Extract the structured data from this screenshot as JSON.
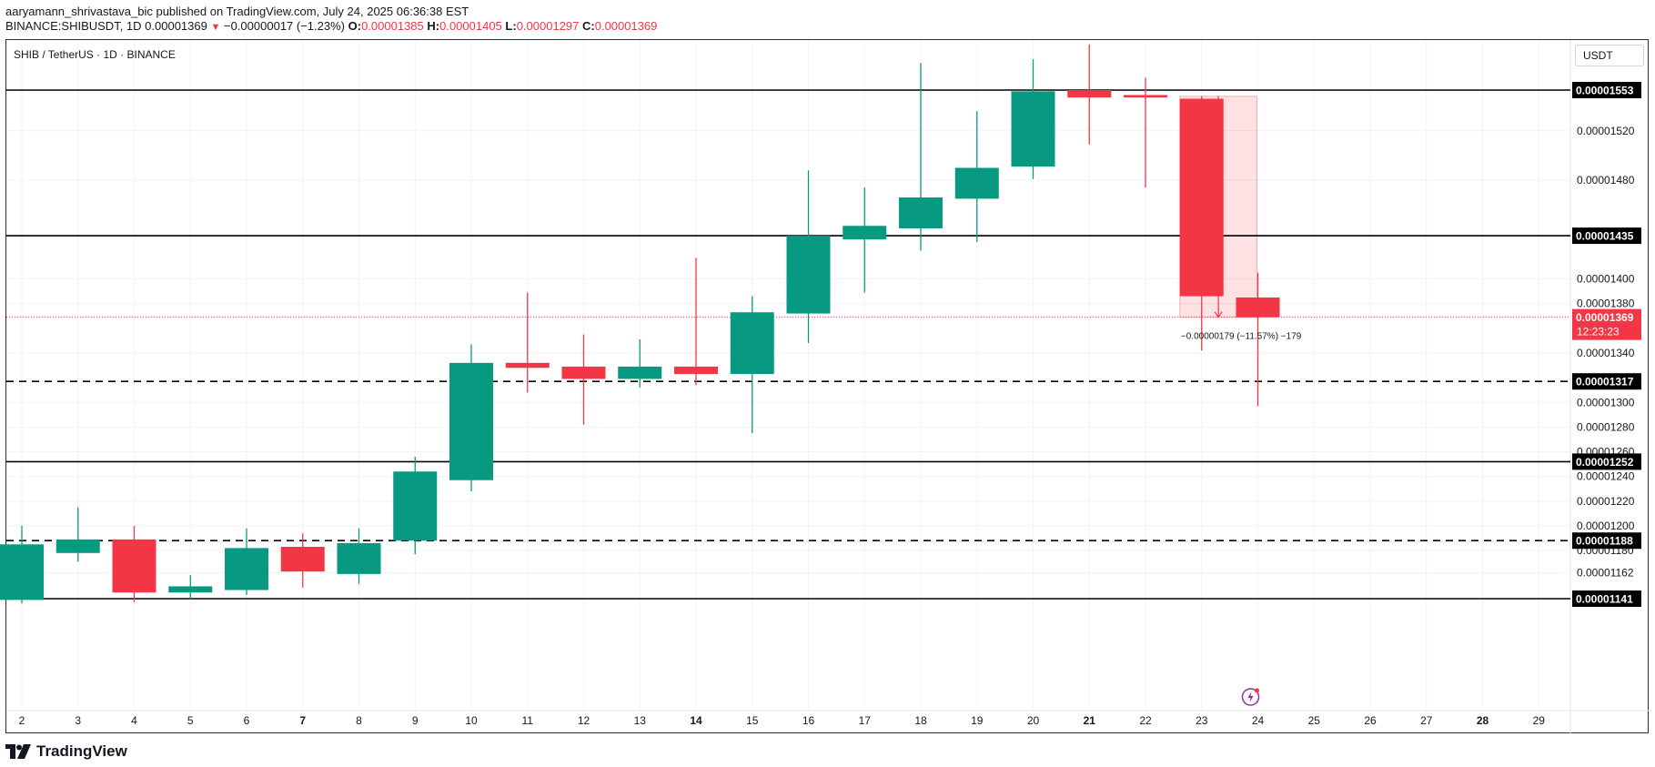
{
  "header": {
    "author_line": "aaryamann_shrivastava_bic published on TradingView.com, July 24, 2025 06:36:38 EST",
    "symbol_line": "BINANCE:SHIBUSDT, 1D",
    "last": "0.00001369",
    "change": "−0.00000017 (−1.23%)",
    "o_label": "O:",
    "o": "0.00001385",
    "h_label": "H:",
    "h": "0.00001405",
    "l_label": "L:",
    "l": "0.00001297",
    "c_label": "C:",
    "c": "0.00001369"
  },
  "chart_title": "SHIB / TetherUS · 1D · BINANCE",
  "currency_unit": "USDT",
  "footer": {
    "brand": "TradingView"
  },
  "colors": {
    "up": "#089981",
    "down": "#f23645",
    "line": "#000000",
    "grid": "#f0f3fa"
  },
  "chart_data": {
    "type": "candlestick",
    "title": "SHIB / TetherUS · 1D · BINANCE",
    "ylim": [
      1.135e-05,
      1.58e-05
    ],
    "y_ticks": [
      "0.00001162",
      "0.00001180",
      "0.00001200",
      "0.00001220",
      "0.00001240",
      "0.00001260",
      "0.00001280",
      "0.00001300",
      "0.00001340",
      "0.00001380",
      "0.00001400",
      "0.00001480",
      "0.00001520"
    ],
    "x_ticks": [
      {
        "label": "2",
        "bold": false
      },
      {
        "label": "3",
        "bold": false
      },
      {
        "label": "4",
        "bold": false
      },
      {
        "label": "5",
        "bold": false
      },
      {
        "label": "6",
        "bold": false
      },
      {
        "label": "7",
        "bold": true
      },
      {
        "label": "8",
        "bold": false
      },
      {
        "label": "9",
        "bold": false
      },
      {
        "label": "10",
        "bold": false
      },
      {
        "label": "11",
        "bold": false
      },
      {
        "label": "12",
        "bold": false
      },
      {
        "label": "13",
        "bold": false
      },
      {
        "label": "14",
        "bold": true
      },
      {
        "label": "15",
        "bold": false
      },
      {
        "label": "16",
        "bold": false
      },
      {
        "label": "17",
        "bold": false
      },
      {
        "label": "18",
        "bold": false
      },
      {
        "label": "19",
        "bold": false
      },
      {
        "label": "20",
        "bold": false
      },
      {
        "label": "21",
        "bold": true
      },
      {
        "label": "22",
        "bold": false
      },
      {
        "label": "23",
        "bold": false
      },
      {
        "label": "24",
        "bold": false
      },
      {
        "label": "25",
        "bold": false
      },
      {
        "label": "26",
        "bold": false
      },
      {
        "label": "27",
        "bold": false
      },
      {
        "label": "28",
        "bold": true
      },
      {
        "label": "29",
        "bold": false
      }
    ],
    "candles": [
      {
        "x": "2",
        "o": 1.14e-05,
        "h": 1.2e-05,
        "l": 1.137e-05,
        "c": 1.185e-05
      },
      {
        "x": "3",
        "o": 1.178e-05,
        "h": 1.215e-05,
        "l": 1.171e-05,
        "c": 1.189e-05
      },
      {
        "x": "4",
        "o": 1.189e-05,
        "h": 1.2e-05,
        "l": 1.138e-05,
        "c": 1.146e-05
      },
      {
        "x": "5",
        "o": 1.146e-05,
        "h": 1.16e-05,
        "l": 1.141e-05,
        "c": 1.151e-05
      },
      {
        "x": "6",
        "o": 1.148e-05,
        "h": 1.198e-05,
        "l": 1.144e-05,
        "c": 1.182e-05
      },
      {
        "x": "7",
        "o": 1.183e-05,
        "h": 1.194e-05,
        "l": 1.15e-05,
        "c": 1.163e-05
      },
      {
        "x": "8",
        "o": 1.161e-05,
        "h": 1.198e-05,
        "l": 1.153e-05,
        "c": 1.186e-05
      },
      {
        "x": "9",
        "o": 1.188e-05,
        "h": 1.256e-05,
        "l": 1.177e-05,
        "c": 1.244e-05
      },
      {
        "x": "10",
        "o": 1.237e-05,
        "h": 1.347e-05,
        "l": 1.228e-05,
        "c": 1.332e-05
      },
      {
        "x": "11",
        "o": 1.332e-05,
        "h": 1.389e-05,
        "l": 1.308e-05,
        "c": 1.328e-05
      },
      {
        "x": "12",
        "o": 1.329e-05,
        "h": 1.355e-05,
        "l": 1.282e-05,
        "c": 1.319e-05
      },
      {
        "x": "13",
        "o": 1.319e-05,
        "h": 1.351e-05,
        "l": 1.312e-05,
        "c": 1.329e-05
      },
      {
        "x": "14",
        "o": 1.329e-05,
        "h": 1.417e-05,
        "l": 1.314e-05,
        "c": 1.323e-05
      },
      {
        "x": "15",
        "o": 1.323e-05,
        "h": 1.386e-05,
        "l": 1.275e-05,
        "c": 1.373e-05
      },
      {
        "x": "16",
        "o": 1.372e-05,
        "h": 1.488e-05,
        "l": 1.348e-05,
        "c": 1.435e-05
      },
      {
        "x": "17",
        "o": 1.432e-05,
        "h": 1.474e-05,
        "l": 1.389e-05,
        "c": 1.443e-05
      },
      {
        "x": "18",
        "o": 1.441e-05,
        "h": 1.575e-05,
        "l": 1.423e-05,
        "c": 1.466e-05
      },
      {
        "x": "19",
        "o": 1.465e-05,
        "h": 1.536e-05,
        "l": 1.43e-05,
        "c": 1.49e-05
      },
      {
        "x": "20",
        "o": 1.491e-05,
        "h": 1.578e-05,
        "l": 1.481e-05,
        "c": 1.552e-05
      },
      {
        "x": "21",
        "o": 1.553e-05,
        "h": 1.59e-05,
        "l": 1.509e-05,
        "c": 1.547e-05
      },
      {
        "x": "22",
        "o": 1.549e-05,
        "h": 1.563e-05,
        "l": 1.474e-05,
        "c": 1.547e-05
      },
      {
        "x": "23",
        "o": 1.546e-05,
        "h": 1.548e-05,
        "l": 1.342e-05,
        "c": 1.386e-05
      },
      {
        "x": "24",
        "o": 1.385e-05,
        "h": 1.405e-05,
        "l": 1.297e-05,
        "c": 1.369e-05
      }
    ],
    "levels": [
      {
        "value": 1.553e-05,
        "label": "0.00001553",
        "style": "solid"
      },
      {
        "value": 1.435e-05,
        "label": "0.00001435",
        "style": "solid"
      },
      {
        "value": 1.317e-05,
        "label": "0.00001317",
        "style": "dashed"
      },
      {
        "value": 1.252e-05,
        "label": "0.00001252",
        "style": "solid"
      },
      {
        "value": 1.188e-05,
        "label": "0.00001188",
        "style": "dashed"
      },
      {
        "value": 1.141e-05,
        "label": "0.00001141",
        "style": "solid"
      }
    ],
    "last_price": {
      "value": 1.369e-05,
      "label": "0.00001369",
      "countdown": "12:23:23"
    },
    "measure": {
      "from_x": "23",
      "to_x": "24",
      "from": 1.548e-05,
      "to": 1.369e-05,
      "text": "−0.00000179 (−11.57%) −179"
    }
  }
}
